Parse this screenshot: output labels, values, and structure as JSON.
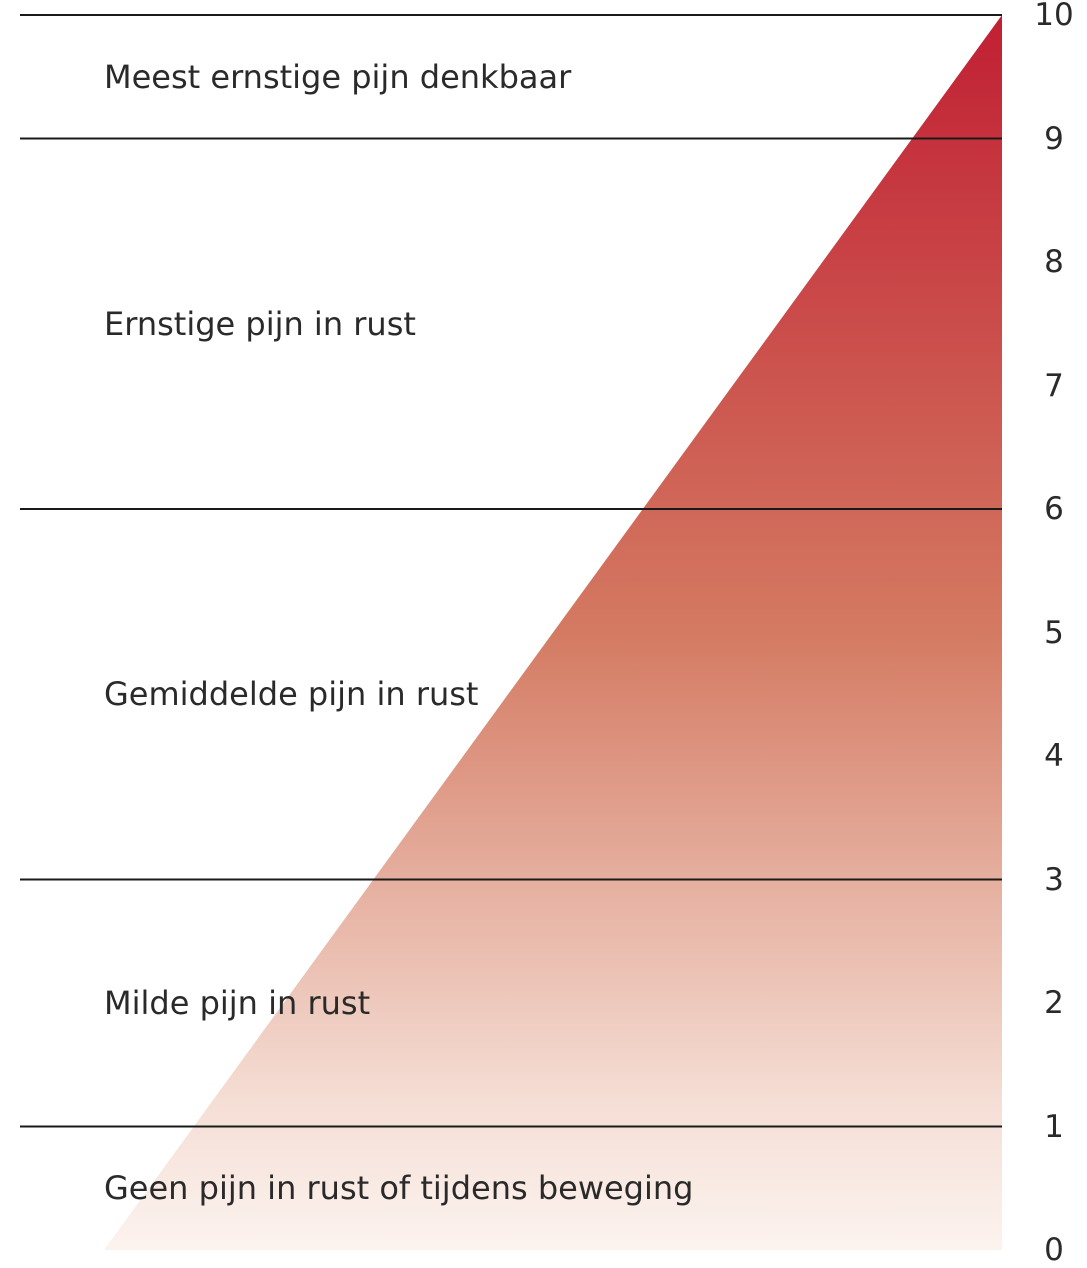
{
  "chart_data": {
    "type": "pain-scale",
    "title": "",
    "scale_min": 0,
    "scale_max": 10,
    "ticks": [
      "10",
      "9",
      "8",
      "7",
      "6",
      "5",
      "4",
      "3",
      "2",
      "1",
      "0"
    ],
    "band_boundaries": [
      10,
      9,
      6,
      3,
      1
    ],
    "bands": [
      {
        "label": "Meest ernstige pijn denkbaar",
        "from": 9,
        "to": 10
      },
      {
        "label": "Ernstige pijn in rust",
        "from": 6,
        "to": 9
      },
      {
        "label": "Gemiddelde pijn in rust",
        "from": 3,
        "to": 6
      },
      {
        "label": "Milde pijn in rust",
        "from": 1,
        "to": 3
      },
      {
        "label": "Geen pijn in rust of tijdens beweging",
        "from": 0,
        "to": 1
      }
    ],
    "colors": {
      "top": "#c11f33",
      "mid": "#d47a62",
      "low": "#f5ded5",
      "bottom": "#fcf3ef",
      "line": "#1a1a1a"
    }
  }
}
